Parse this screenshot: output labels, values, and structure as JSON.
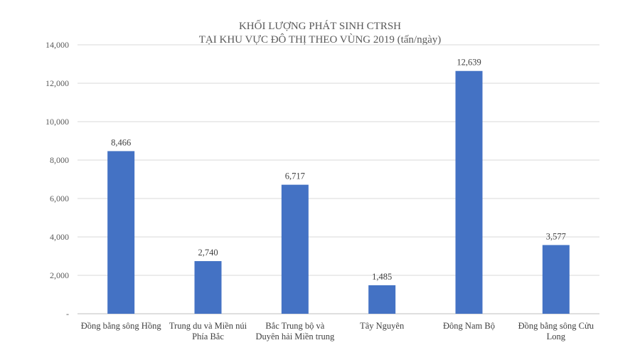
{
  "chart_data": {
    "type": "bar",
    "title": [
      "KHỐI LƯỢNG PHÁT SINH CTRSH",
      "TẠI KHU VỰC ĐÔ THỊ THEO VÙNG 2019 (tấn/ngày)"
    ],
    "categories": [
      [
        "Đồng bằng sông Hồng"
      ],
      [
        "Trung du và Miền núi",
        "Phía Bắc"
      ],
      [
        "Bắc Trung bộ và",
        "Duyên hải Miền trung"
      ],
      [
        "Tây Nguyên"
      ],
      [
        "Đông Nam Bộ"
      ],
      [
        "Đồng bằng sông Cửu",
        "Long"
      ]
    ],
    "values": [
      8466,
      2740,
      6717,
      1485,
      12639,
      3577
    ],
    "data_labels": [
      "8,466",
      "2,740",
      "6,717",
      "1,485",
      "12,639",
      "3,577"
    ],
    "ylim": [
      0,
      14000
    ],
    "yticks": [
      0,
      2000,
      4000,
      6000,
      8000,
      10000,
      12000,
      14000
    ],
    "ytick_labels": [
      "-",
      "2,000",
      "4,000",
      "6,000",
      "8,000",
      "10,000",
      "12,000",
      "14,000"
    ],
    "xlabel": "",
    "ylabel": "",
    "grid": true,
    "colors": {
      "bar": "#4472C4",
      "grid": "#D9D9D9",
      "axis": "#BFBFBF"
    }
  }
}
